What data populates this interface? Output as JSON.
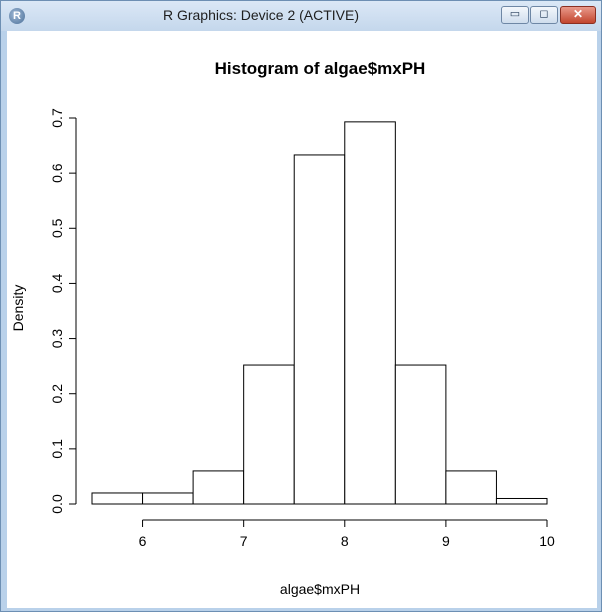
{
  "window": {
    "title": "R Graphics: Device 2 (ACTIVE)",
    "app_icon_letter": "R",
    "minimize_symbol": "▭",
    "maximize_symbol": "◻",
    "close_symbol": "✕"
  },
  "chart_data": {
    "type": "bar",
    "title": "Histogram of algae$mxPH",
    "xlabel": "algae$mxPH",
    "ylabel": "Density",
    "bins": [
      {
        "start": 5.5,
        "end": 6.0,
        "density": 0.02
      },
      {
        "start": 6.0,
        "end": 6.5,
        "density": 0.02
      },
      {
        "start": 6.5,
        "end": 7.0,
        "density": 0.06
      },
      {
        "start": 7.0,
        "end": 7.5,
        "density": 0.252
      },
      {
        "start": 7.5,
        "end": 8.0,
        "density": 0.633
      },
      {
        "start": 8.0,
        "end": 8.5,
        "density": 0.693
      },
      {
        "start": 8.5,
        "end": 9.0,
        "density": 0.252
      },
      {
        "start": 9.0,
        "end": 9.5,
        "density": 0.06
      },
      {
        "start": 9.5,
        "end": 10.0,
        "density": 0.01
      }
    ],
    "xlim": [
      5.5,
      10.0
    ],
    "ylim": [
      0,
      0.7
    ],
    "x_ticks": [
      "6",
      "7",
      "8",
      "9",
      "10"
    ],
    "y_ticks": [
      "0.0",
      "0.1",
      "0.2",
      "0.3",
      "0.4",
      "0.5",
      "0.6",
      "0.7"
    ],
    "grid": false,
    "legend": "none",
    "bar_fill": "#ffffff",
    "bar_stroke": "#000000"
  }
}
